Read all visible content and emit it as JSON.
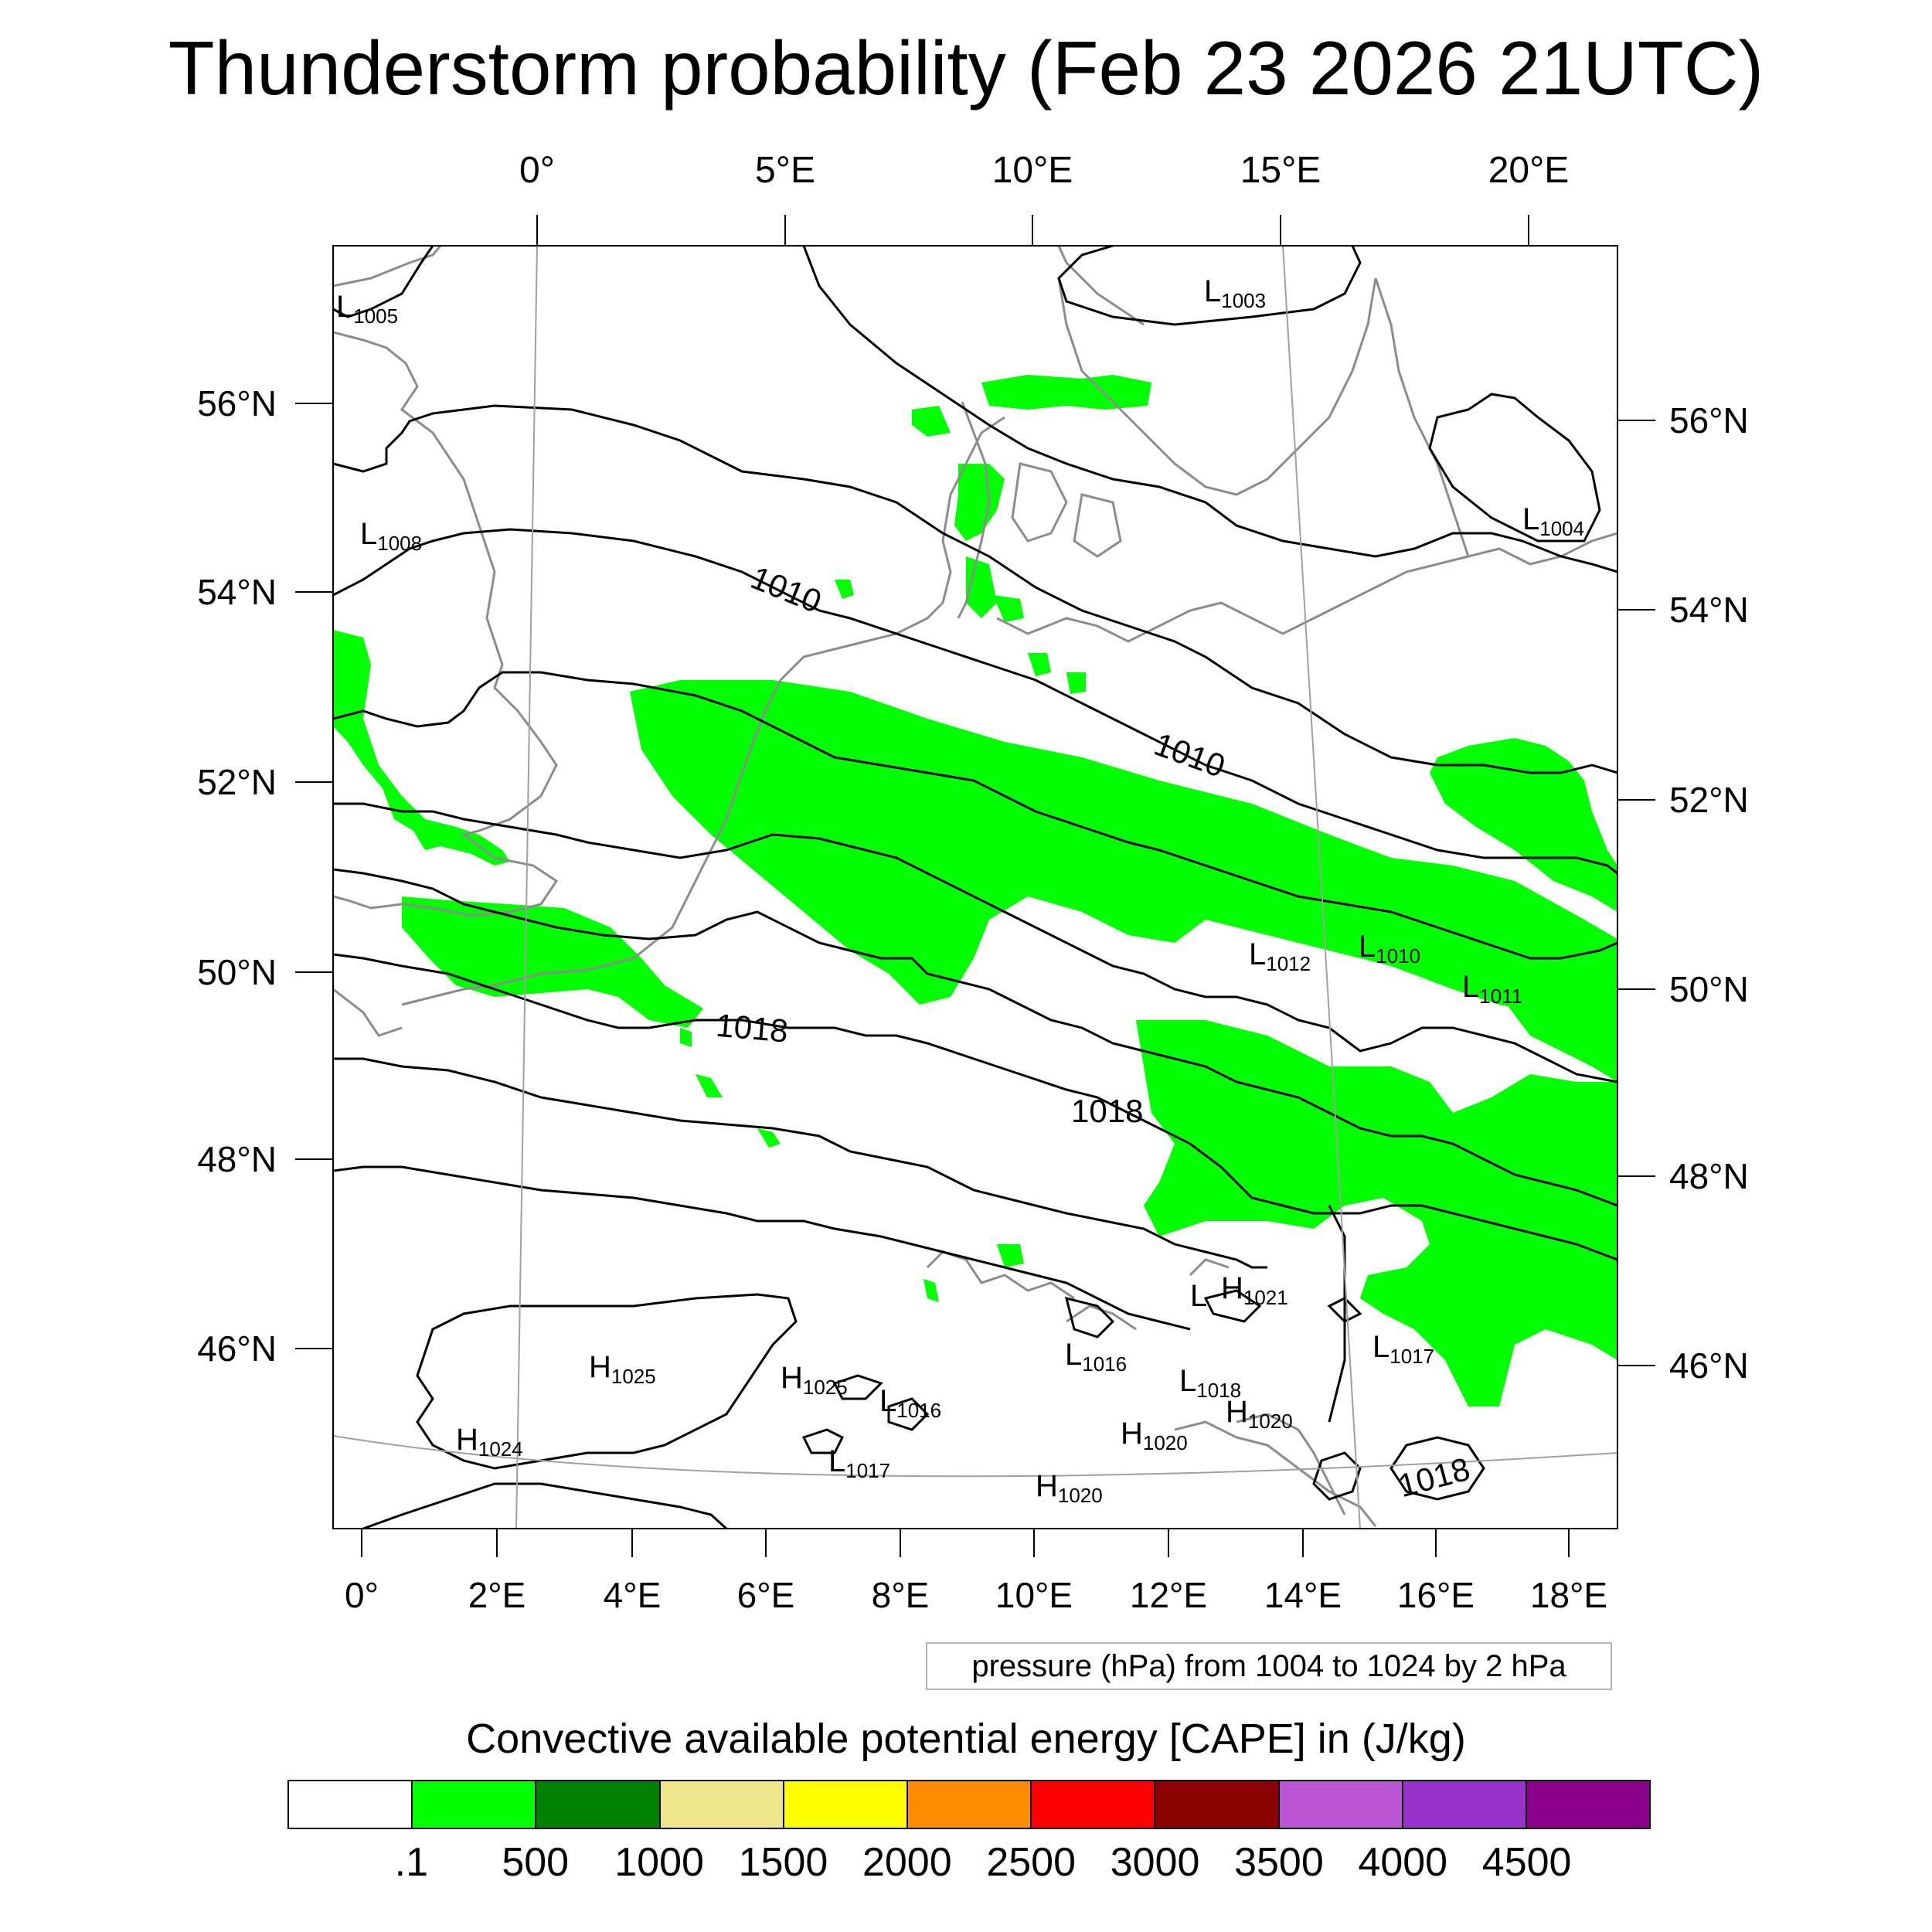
{
  "title": "Thunderstorm probability (Feb 23 2026 21UTC)",
  "map": {
    "top_lon_labels": [
      "0°",
      "5°E",
      "10°E",
      "15°E",
      "20°E"
    ],
    "left_lat_labels": [
      "56°N",
      "54°N",
      "52°N",
      "50°N",
      "48°N",
      "46°N"
    ],
    "right_lat_labels": [
      "56°N",
      "54°N",
      "52°N",
      "50°N",
      "48°N",
      "46°N"
    ],
    "bottom_lon_labels": [
      "0°",
      "2°E",
      "4°E",
      "6°E",
      "8°E",
      "10°E",
      "12°E",
      "14°E",
      "16°E",
      "18°E"
    ],
    "isobar_labels": [
      "1010",
      "1010",
      "1018",
      "1018",
      "1018"
    ],
    "pressure_centers": [
      {
        "type": "L",
        "value": "1005"
      },
      {
        "type": "L",
        "value": "1003"
      },
      {
        "type": "L",
        "value": "1008"
      },
      {
        "type": "L",
        "value": "1004"
      },
      {
        "type": "L",
        "value": "1012"
      },
      {
        "type": "L",
        "value": "1010"
      },
      {
        "type": "L",
        "value": "1011"
      },
      {
        "type": "L",
        "value": ""
      },
      {
        "type": "H",
        "value": "1021"
      },
      {
        "type": "H",
        "value": "1025"
      },
      {
        "type": "H",
        "value": "1025"
      },
      {
        "type": "L",
        "value": "1016"
      },
      {
        "type": "L",
        "value": "1016"
      },
      {
        "type": "L",
        "value": "1018"
      },
      {
        "type": "L",
        "value": "1017"
      },
      {
        "type": "H",
        "value": "1024"
      },
      {
        "type": "L",
        "value": "1017"
      },
      {
        "type": "H",
        "value": "1020"
      },
      {
        "type": "H",
        "value": "1020"
      },
      {
        "type": "H",
        "value": "1020"
      }
    ],
    "colors": {
      "cape_fill": "#00ff00",
      "isobar": "#000000",
      "coast": "#8c8c8c",
      "grid": "#a0a0a0"
    }
  },
  "legend_note": "pressure (hPa) from 1004 to 1024 by 2 hPa",
  "colorbar": {
    "title": "Convective available potential energy [CAPE] in (J/kg)",
    "colors": [
      "#ffffff",
      "#00ff00",
      "#008000",
      "#f0e68c",
      "#ffff00",
      "#ff8c00",
      "#ff0000",
      "#8b0000",
      "#ba55d3",
      "#9932cc",
      "#8b008b"
    ],
    "labels": [
      ".1",
      "500",
      "1000",
      "1500",
      "2000",
      "2500",
      "3000",
      "3500",
      "4000",
      "4500"
    ]
  }
}
